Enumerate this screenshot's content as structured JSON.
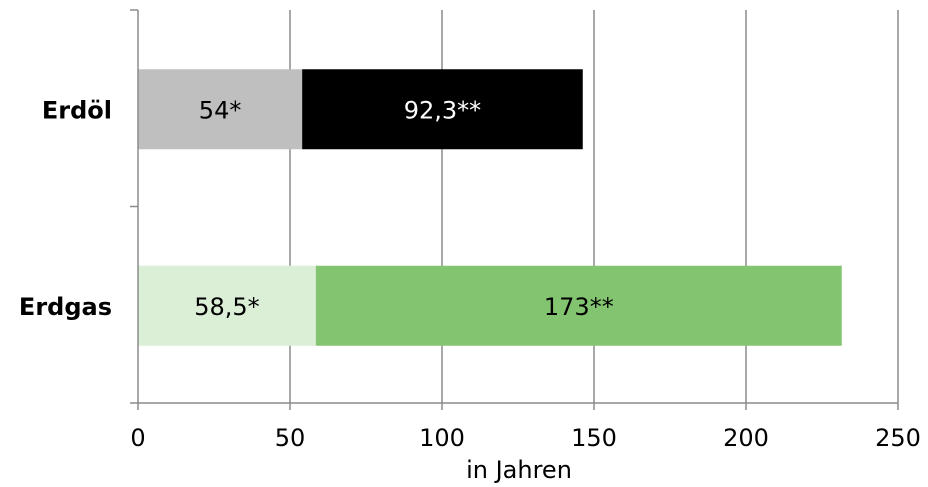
{
  "chart_data": {
    "type": "bar",
    "orientation": "horizontal",
    "stacked": true,
    "categories": [
      "Erdöl",
      "Erdgas"
    ],
    "xlabel": "in Jahren",
    "xlim": [
      0,
      250
    ],
    "xticks": [
      0,
      50,
      100,
      150,
      200,
      250
    ],
    "grid": true,
    "segments": [
      [
        {
          "value": 54,
          "label": "54*",
          "color": "#bfbfbf",
          "text_color": "#000000"
        },
        {
          "value": 92.3,
          "label": "92,3**",
          "color": "#000000",
          "text_color": "#ffffff"
        }
      ],
      [
        {
          "value": 58.5,
          "label": "58,5*",
          "color": "#dbeed6",
          "text_color": "#000000"
        },
        {
          "value": 173,
          "label": "173**",
          "color": "#82c46f",
          "text_color": "#000000"
        }
      ]
    ]
  }
}
